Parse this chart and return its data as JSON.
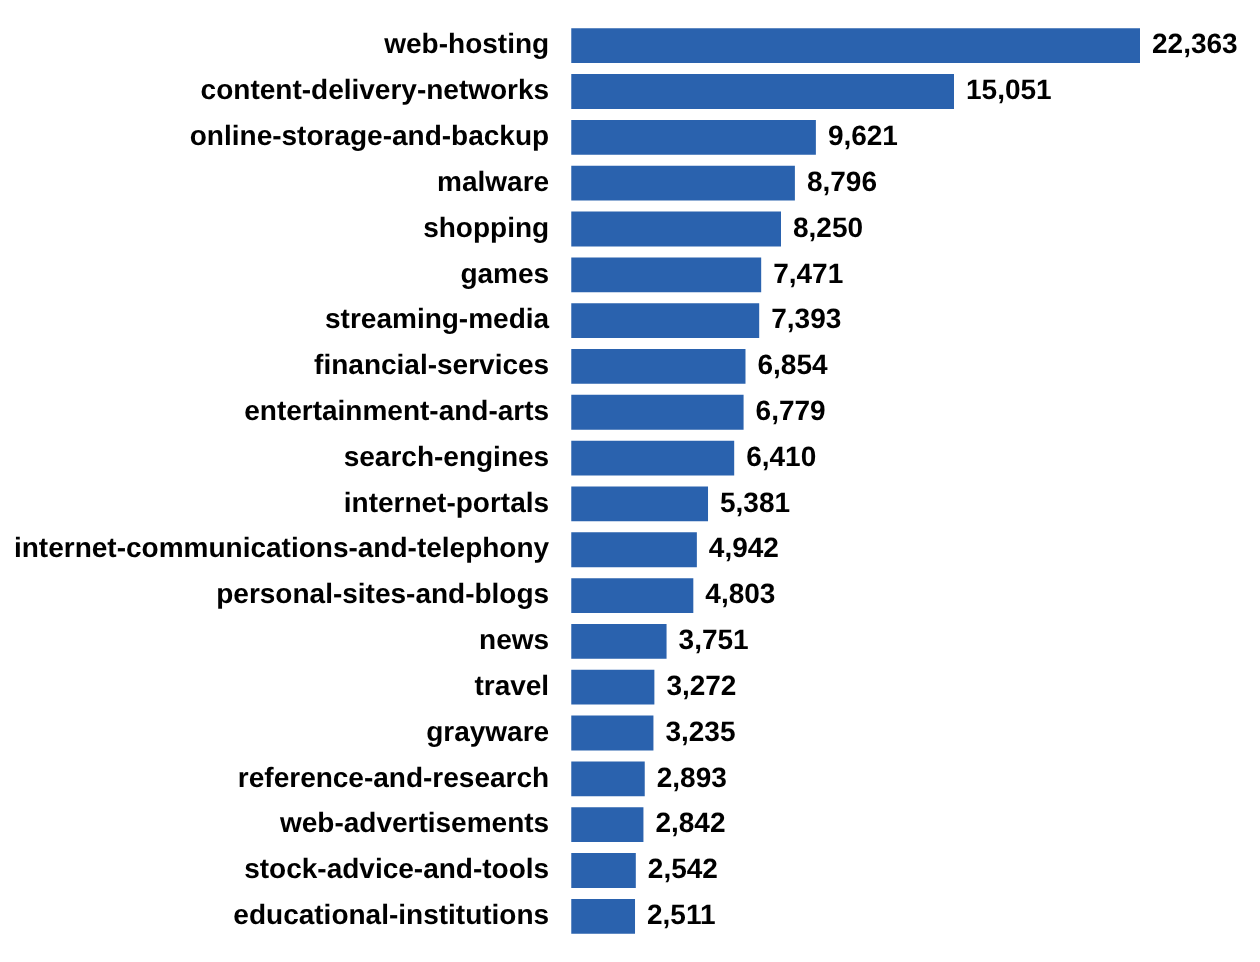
{
  "chart_data": {
    "type": "bar",
    "orientation": "horizontal",
    "legend": false,
    "categories": [
      "web-hosting",
      "content-delivery-networks",
      "online-storage-and-backup",
      "malware",
      "shopping",
      "games",
      "streaming-media",
      "financial-services",
      "entertainment-and-arts",
      "search-engines",
      "internet-portals",
      "internet-communications-and-telephony",
      "personal-sites-and-blogs",
      "news",
      "travel",
      "grayware",
      "reference-and-research",
      "web-advertisements",
      "stock-advice-and-tools",
      "educational-institutions"
    ],
    "values": [
      22363,
      15051,
      9621,
      8796,
      8250,
      7471,
      7393,
      6854,
      6779,
      6410,
      5381,
      4942,
      4803,
      3751,
      3272,
      3235,
      2893,
      2842,
      2542,
      2511
    ],
    "value_labels": [
      "22,363",
      "15,051",
      "9,621",
      "8,796",
      "8,250",
      "7,471",
      "7,393",
      "6,854",
      "6,779",
      "6,410",
      "5,381",
      "4,942",
      "4,803",
      "3,751",
      "3,272",
      "3,235",
      "2,893",
      "2,842",
      "2,542",
      "2,511"
    ],
    "color": "#2a62ae"
  }
}
